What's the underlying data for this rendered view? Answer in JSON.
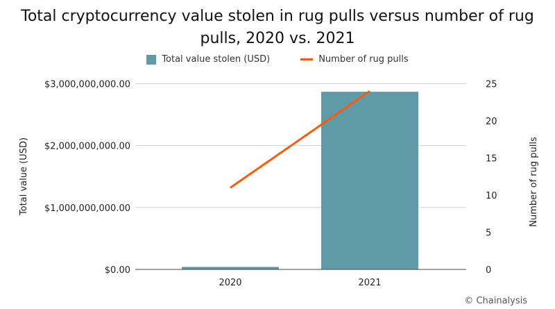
{
  "chart_data": {
    "type": "bar",
    "title": "Total cryptocurrency value stolen in rug pulls versus number of rug pulls, 2020 vs. 2021",
    "categories": [
      "2020",
      "2021"
    ],
    "series": [
      {
        "name": "Total value stolen (USD)",
        "type": "bar",
        "axis": "left",
        "color": "#5e9ba7",
        "values": [
          41000000,
          2870000000
        ]
      },
      {
        "name": "Number of rug pulls",
        "type": "line",
        "axis": "right",
        "color": "#ff5a0a",
        "values": [
          11,
          24
        ]
      }
    ],
    "ylabel": "Total value (USD)",
    "y2label": "Number of rug pulls",
    "ylim": [
      0,
      3000000000
    ],
    "y2lim": [
      0,
      25
    ],
    "yticks": [
      0,
      1000000000,
      2000000000,
      3000000000
    ],
    "ytick_labels": [
      "$0.00",
      "$1,000,000,000.00",
      "$2,000,000,000.00",
      "$3,000,000,000.00"
    ],
    "y2ticks": [
      0,
      5,
      10,
      15,
      20,
      25
    ],
    "y2tick_labels": [
      "0",
      "5",
      "10",
      "15",
      "20",
      "25"
    ],
    "grid": true,
    "legend": "top-center"
  },
  "credit": "© Chainalysis"
}
